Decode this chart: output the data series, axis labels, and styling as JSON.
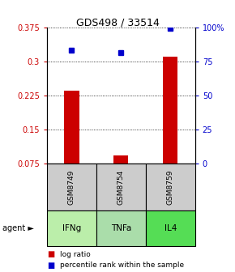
{
  "title": "GDS498 / 33514",
  "samples": [
    "GSM8749",
    "GSM8754",
    "GSM8759"
  ],
  "agents": [
    "IFNg",
    "TNFa",
    "IL4"
  ],
  "log_ratios": [
    0.235,
    0.093,
    0.31
  ],
  "percentiles": [
    0.833,
    0.816,
    0.993
  ],
  "left_yticks": [
    0.075,
    0.15,
    0.225,
    0.3,
    0.375
  ],
  "left_ytick_labels": [
    "0.075",
    "0.15",
    "0.225",
    "0.3",
    "0.375"
  ],
  "right_yticks": [
    0,
    25,
    50,
    75,
    100
  ],
  "right_ytick_labels": [
    "0",
    "25",
    "50",
    "75",
    "100%"
  ],
  "ymin": 0.075,
  "ymax": 0.375,
  "bar_color": "#cc0000",
  "marker_color": "#0000cc",
  "agent_box_colors": [
    "#bbeeaa",
    "#aaddaa",
    "#55dd55"
  ],
  "sample_box_color": "#cccccc",
  "legend_bar_label": "log ratio",
  "legend_marker_label": "percentile rank within the sample",
  "agent_label": "agent ►"
}
